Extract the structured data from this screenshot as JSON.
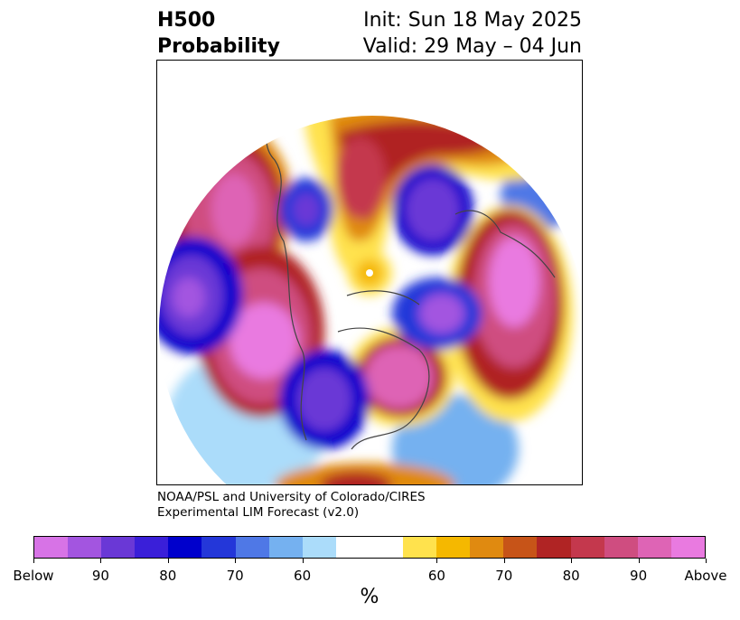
{
  "header": {
    "title_line1": "H500",
    "title_line2": "Probability",
    "init_text": "Init: Sun 18 May 2025",
    "valid_text": "Valid: 29 May – 04 Jun"
  },
  "credit": {
    "line1": "NOAA/PSL and University of Colorado/CIRES",
    "line2": "Experimental LIM Forecast (v2.0)"
  },
  "colorbar": {
    "colors": [
      "#d773e6",
      "#a355e0",
      "#6a38d6",
      "#3a1fd9",
      "#0000cc",
      "#2437d9",
      "#4f78e6",
      "#75b1f0",
      "#abdcfa",
      "#ffffff",
      "#ffffff",
      "#ffe24d",
      "#f5b800",
      "#e08a10",
      "#c75418",
      "#b02424",
      "#c4384d",
      "#cf4d80",
      "#de64b5",
      "#e97ae0"
    ],
    "tick_labels": [
      "Below",
      "90",
      "80",
      "70",
      "60",
      "60",
      "70",
      "80",
      "90",
      "Above"
    ],
    "unit": "%"
  },
  "map": {
    "projection": "north-polar-stereographic",
    "field": "500 hPa height probability",
    "above_color": "#e97ae0",
    "below_color": "#3a1fd9"
  }
}
